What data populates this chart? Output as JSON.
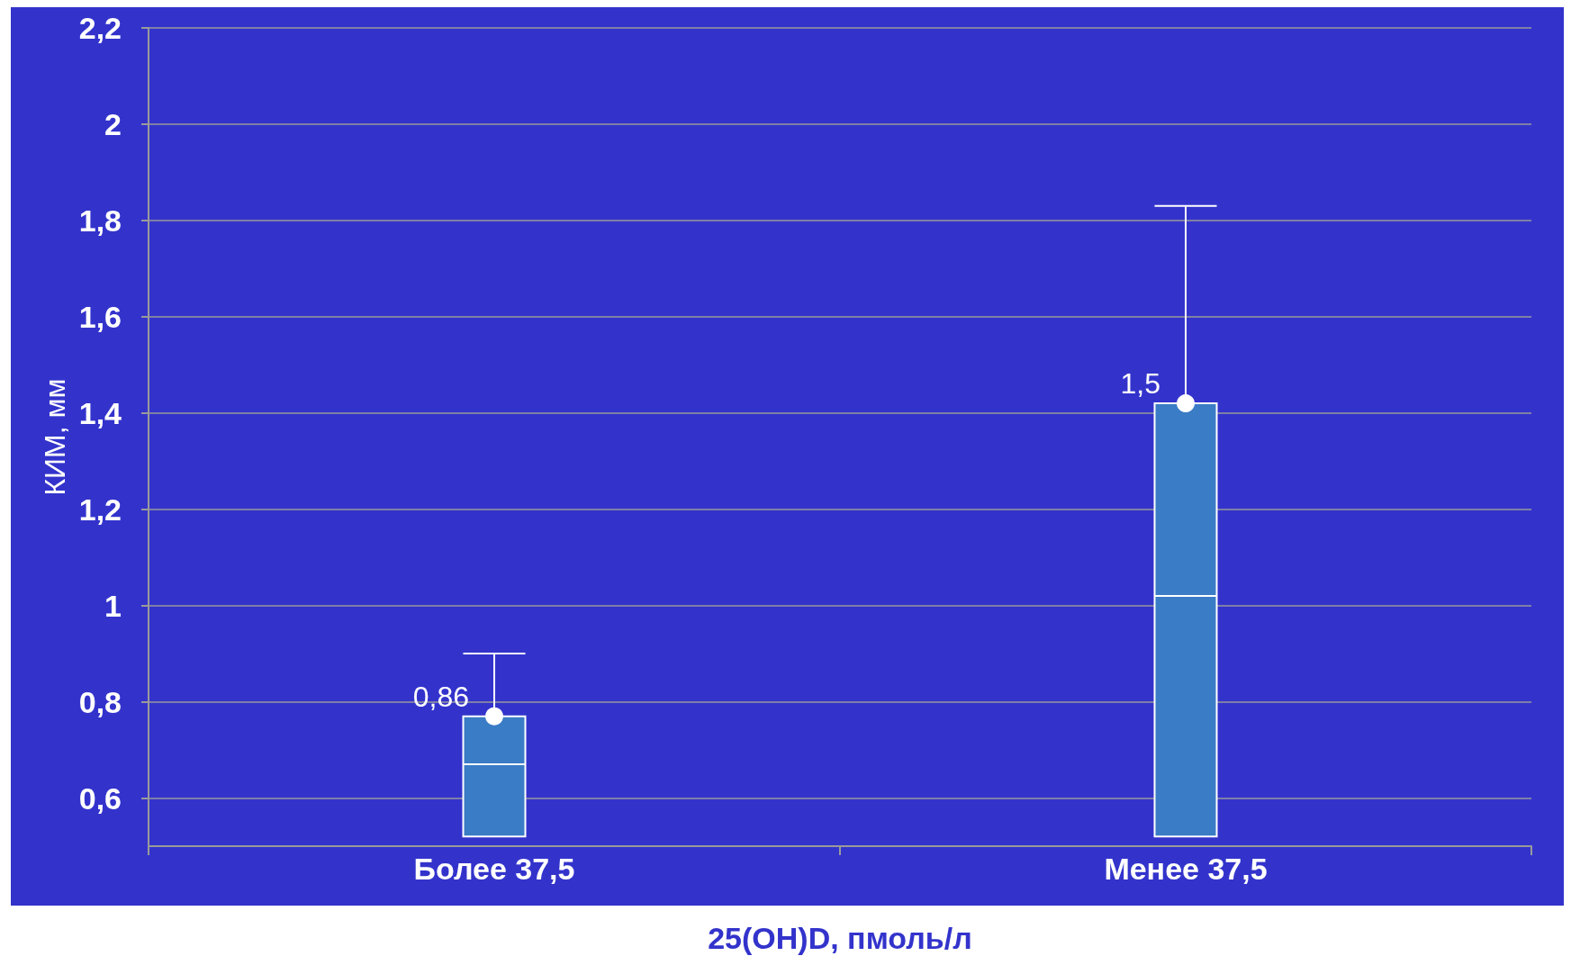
{
  "chart_data": {
    "type": "box",
    "xlabel": "25(OH)D, пмоль/л",
    "ylabel": "КИМ, мм",
    "categories": [
      "Более 37,5",
      "Менее 37,5"
    ],
    "boxes": [
      {
        "low": 0.52,
        "q1": 0.52,
        "median": 0.67,
        "q3": 0.77,
        "high": 0.9,
        "mean": 0.77
      },
      {
        "low": 0.52,
        "q1": 0.52,
        "median": 1.02,
        "q3": 1.42,
        "high": 1.83,
        "mean": 1.42
      }
    ],
    "color": "#3a7cc6",
    "ylim": [
      0.5,
      2.2
    ],
    "yticks": [
      {
        "value": 0.6,
        "label": "0,6"
      },
      {
        "value": 0.8,
        "label": "0,8"
      },
      {
        "value": 1,
        "label": "1"
      },
      {
        "value": 1.2,
        "label": "1,2"
      },
      {
        "value": 1.4,
        "label": "1,4"
      },
      {
        "value": 1.6,
        "label": "1,6"
      },
      {
        "value": 1.8,
        "label": "1,8"
      },
      {
        "value": 2,
        "label": "2"
      },
      {
        "value": 2.2,
        "label": "2,2"
      }
    ],
    "grid": "y",
    "annotations": [
      {
        "text": "0,86",
        "x": "Более 37,5",
        "y": 0.77
      },
      {
        "text": "1,5",
        "x": "Менее 37,5",
        "y": 1.42
      }
    ]
  }
}
